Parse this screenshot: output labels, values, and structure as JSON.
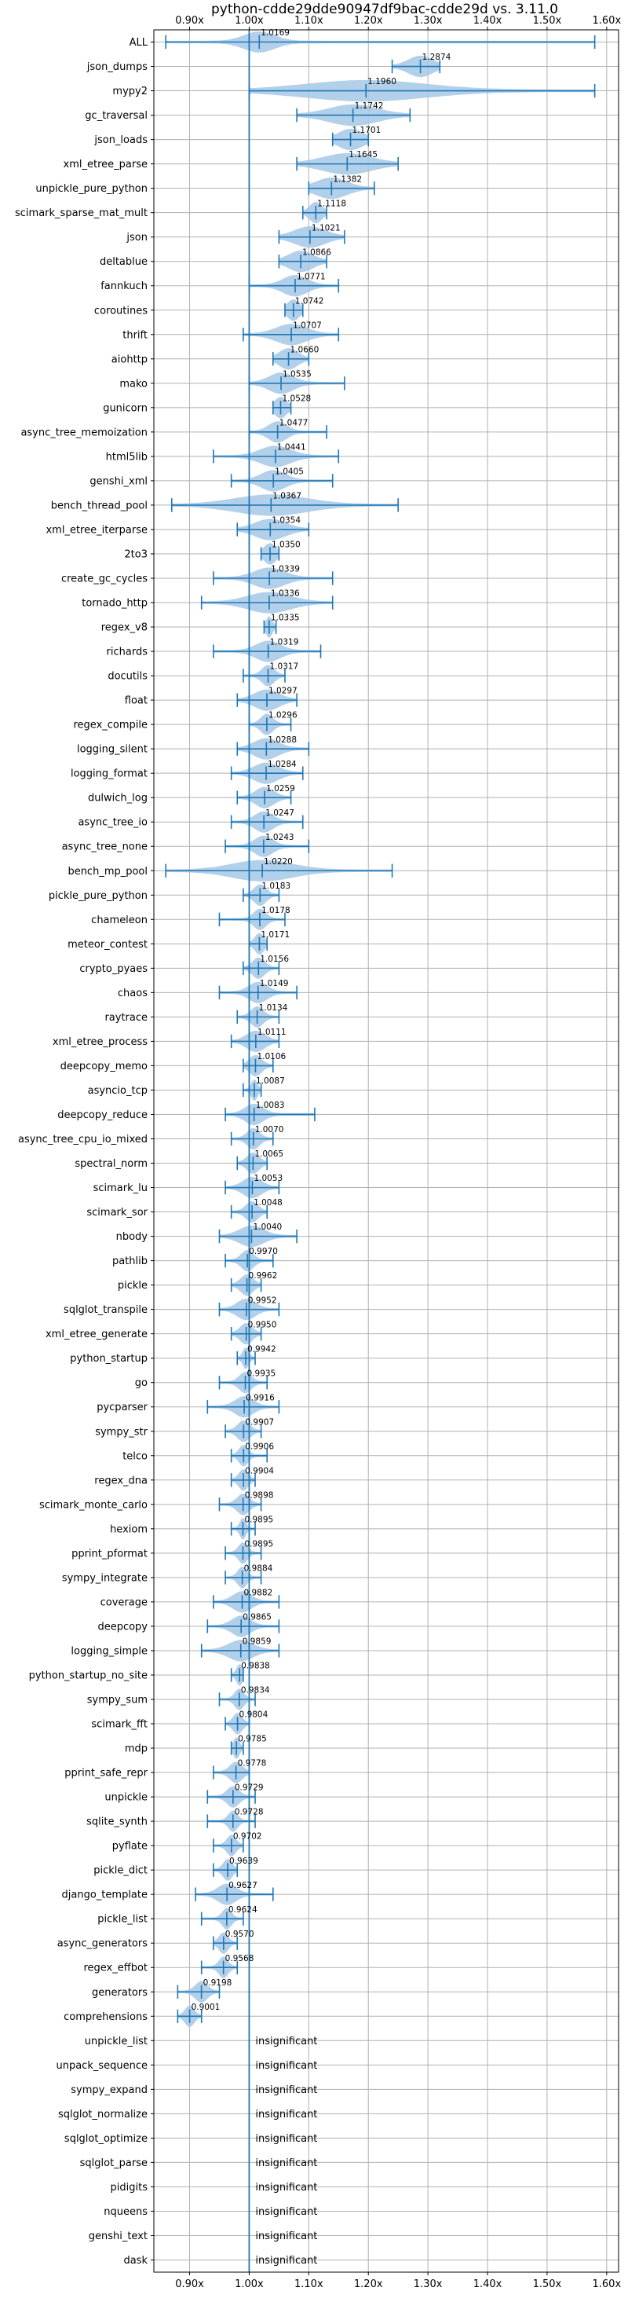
{
  "chart_data": {
    "type": "violin",
    "title": "python-cdde29dde90947df9bac-cdde29d vs. 3.11.0",
    "xlim": [
      0.84,
      1.62
    ],
    "x_ticks": [
      0.9,
      1.0,
      1.1,
      1.2,
      1.3,
      1.4,
      1.5,
      1.6
    ],
    "x_tick_labels": [
      "0.90x",
      "1.00x",
      "1.10x",
      "1.20x",
      "1.30x",
      "1.40x",
      "1.50x",
      "1.60x"
    ],
    "x_tick_labels_position": "top-and-bottom",
    "reference_line": 1.0,
    "grid": true,
    "colors": {
      "violin": "#a6c8e8",
      "line": "#1f77b4",
      "grid": "#b0b0b0"
    },
    "benchmarks": [
      {
        "name": "ALL",
        "mean": 1.0169,
        "min": 0.86,
        "max": 1.58,
        "spread": 0.05
      },
      {
        "name": "json_dumps",
        "mean": 1.2874,
        "min": 1.24,
        "max": 1.32,
        "spread": 0.04
      },
      {
        "name": "mypy2",
        "mean": 1.196,
        "min": 1.0,
        "max": 1.58,
        "spread": 0.2
      },
      {
        "name": "gc_traversal",
        "mean": 1.1742,
        "min": 1.08,
        "max": 1.27,
        "spread": 0.08
      },
      {
        "name": "json_loads",
        "mean": 1.1701,
        "min": 1.14,
        "max": 1.2,
        "spread": 0.04
      },
      {
        "name": "xml_etree_parse",
        "mean": 1.1645,
        "min": 1.08,
        "max": 1.25,
        "spread": 0.08
      },
      {
        "name": "unpickle_pure_python",
        "mean": 1.1382,
        "min": 1.1,
        "max": 1.21,
        "spread": 0.05
      },
      {
        "name": "scimark_sparse_mat_mult",
        "mean": 1.1118,
        "min": 1.09,
        "max": 1.13,
        "spread": 0.02
      },
      {
        "name": "json",
        "mean": 1.1021,
        "min": 1.05,
        "max": 1.16,
        "spread": 0.05
      },
      {
        "name": "deltablue",
        "mean": 1.0866,
        "min": 1.05,
        "max": 1.13,
        "spread": 0.04
      },
      {
        "name": "fannkuch",
        "mean": 1.0771,
        "min": 1.0,
        "max": 1.15,
        "spread": 0.04
      },
      {
        "name": "coroutines",
        "mean": 1.0742,
        "min": 1.06,
        "max": 1.09,
        "spread": 0.02
      },
      {
        "name": "thrift",
        "mean": 1.0707,
        "min": 0.99,
        "max": 1.15,
        "spread": 0.05
      },
      {
        "name": "aiohttp",
        "mean": 1.066,
        "min": 1.04,
        "max": 1.1,
        "spread": 0.03
      },
      {
        "name": "mako",
        "mean": 1.0535,
        "min": 1.0,
        "max": 1.16,
        "spread": 0.04
      },
      {
        "name": "gunicorn",
        "mean": 1.0528,
        "min": 1.04,
        "max": 1.07,
        "spread": 0.02
      },
      {
        "name": "async_tree_memoization",
        "mean": 1.0477,
        "min": 1.0,
        "max": 1.13,
        "spread": 0.03
      },
      {
        "name": "html5lib",
        "mean": 1.0441,
        "min": 0.94,
        "max": 1.15,
        "spread": 0.05
      },
      {
        "name": "genshi_xml",
        "mean": 1.0405,
        "min": 0.97,
        "max": 1.14,
        "spread": 0.04
      },
      {
        "name": "bench_thread_pool",
        "mean": 1.0367,
        "min": 0.87,
        "max": 1.25,
        "spread": 0.12
      },
      {
        "name": "xml_etree_iterparse",
        "mean": 1.0354,
        "min": 0.98,
        "max": 1.1,
        "spread": 0.05
      },
      {
        "name": "2to3",
        "mean": 1.035,
        "min": 1.02,
        "max": 1.05,
        "spread": 0.02
      },
      {
        "name": "create_gc_cycles",
        "mean": 1.0339,
        "min": 0.94,
        "max": 1.14,
        "spread": 0.05
      },
      {
        "name": "tornado_http",
        "mean": 1.0336,
        "min": 0.92,
        "max": 1.14,
        "spread": 0.07
      },
      {
        "name": "regex_v8",
        "mean": 1.0335,
        "min": 1.025,
        "max": 1.045,
        "spread": 0.01
      },
      {
        "name": "richards",
        "mean": 1.0319,
        "min": 0.94,
        "max": 1.12,
        "spread": 0.04
      },
      {
        "name": "docutils",
        "mean": 1.0317,
        "min": 0.99,
        "max": 1.06,
        "spread": 0.02
      },
      {
        "name": "float",
        "mean": 1.0297,
        "min": 0.98,
        "max": 1.08,
        "spread": 0.04
      },
      {
        "name": "regex_compile",
        "mean": 1.0296,
        "min": 1.0,
        "max": 1.07,
        "spread": 0.02
      },
      {
        "name": "logging_silent",
        "mean": 1.0288,
        "min": 0.98,
        "max": 1.1,
        "spread": 0.04
      },
      {
        "name": "logging_format",
        "mean": 1.0284,
        "min": 0.97,
        "max": 1.09,
        "spread": 0.04
      },
      {
        "name": "dulwich_log",
        "mean": 1.0259,
        "min": 0.98,
        "max": 1.07,
        "spread": 0.03
      },
      {
        "name": "async_tree_io",
        "mean": 1.0247,
        "min": 0.97,
        "max": 1.09,
        "spread": 0.03
      },
      {
        "name": "async_tree_none",
        "mean": 1.0243,
        "min": 0.96,
        "max": 1.1,
        "spread": 0.03
      },
      {
        "name": "bench_mp_pool",
        "mean": 1.022,
        "min": 0.86,
        "max": 1.24,
        "spread": 0.1
      },
      {
        "name": "pickle_pure_python",
        "mean": 1.0183,
        "min": 0.99,
        "max": 1.05,
        "spread": 0.02
      },
      {
        "name": "chameleon",
        "mean": 1.0178,
        "min": 0.95,
        "max": 1.06,
        "spread": 0.02
      },
      {
        "name": "meteor_contest",
        "mean": 1.0171,
        "min": 1.0,
        "max": 1.03,
        "spread": 0.015
      },
      {
        "name": "crypto_pyaes",
        "mean": 1.0156,
        "min": 0.99,
        "max": 1.05,
        "spread": 0.02
      },
      {
        "name": "chaos",
        "mean": 1.0149,
        "min": 0.95,
        "max": 1.08,
        "spread": 0.03
      },
      {
        "name": "raytrace",
        "mean": 1.0134,
        "min": 0.98,
        "max": 1.05,
        "spread": 0.02
      },
      {
        "name": "xml_etree_process",
        "mean": 1.0111,
        "min": 0.97,
        "max": 1.05,
        "spread": 0.03
      },
      {
        "name": "deepcopy_memo",
        "mean": 1.0106,
        "min": 0.99,
        "max": 1.04,
        "spread": 0.02
      },
      {
        "name": "asyncio_tcp",
        "mean": 1.0087,
        "min": 0.99,
        "max": 1.02,
        "spread": 0.01
      },
      {
        "name": "deepcopy_reduce",
        "mean": 1.0083,
        "min": 0.96,
        "max": 1.11,
        "spread": 0.03
      },
      {
        "name": "async_tree_cpu_io_mixed",
        "mean": 1.007,
        "min": 0.97,
        "max": 1.04,
        "spread": 0.02
      },
      {
        "name": "spectral_norm",
        "mean": 1.0065,
        "min": 0.98,
        "max": 1.03,
        "spread": 0.02
      },
      {
        "name": "scimark_lu",
        "mean": 1.0053,
        "min": 0.96,
        "max": 1.05,
        "spread": 0.03
      },
      {
        "name": "scimark_sor",
        "mean": 1.0048,
        "min": 0.97,
        "max": 1.03,
        "spread": 0.02
      },
      {
        "name": "nbody",
        "mean": 1.004,
        "min": 0.95,
        "max": 1.08,
        "spread": 0.04
      },
      {
        "name": "pathlib",
        "mean": 0.997,
        "min": 0.96,
        "max": 1.04,
        "spread": 0.02
      },
      {
        "name": "pickle",
        "mean": 0.9962,
        "min": 0.97,
        "max": 1.02,
        "spread": 0.02
      },
      {
        "name": "sqlglot_transpile",
        "mean": 0.9952,
        "min": 0.95,
        "max": 1.05,
        "spread": 0.03
      },
      {
        "name": "xml_etree_generate",
        "mean": 0.995,
        "min": 0.97,
        "max": 1.02,
        "spread": 0.02
      },
      {
        "name": "python_startup",
        "mean": 0.9942,
        "min": 0.98,
        "max": 1.01,
        "spread": 0.01
      },
      {
        "name": "go",
        "mean": 0.9935,
        "min": 0.95,
        "max": 1.03,
        "spread": 0.02
      },
      {
        "name": "pycparser",
        "mean": 0.9916,
        "min": 0.93,
        "max": 1.05,
        "spread": 0.03
      },
      {
        "name": "sympy_str",
        "mean": 0.9907,
        "min": 0.96,
        "max": 1.02,
        "spread": 0.02
      },
      {
        "name": "telco",
        "mean": 0.9906,
        "min": 0.97,
        "max": 1.03,
        "spread": 0.015
      },
      {
        "name": "regex_dna",
        "mean": 0.9904,
        "min": 0.97,
        "max": 1.01,
        "spread": 0.015
      },
      {
        "name": "scimark_monte_carlo",
        "mean": 0.9898,
        "min": 0.95,
        "max": 1.02,
        "spread": 0.02
      },
      {
        "name": "hexiom",
        "mean": 0.9895,
        "min": 0.97,
        "max": 1.01,
        "spread": 0.01
      },
      {
        "name": "pprint_pformat",
        "mean": 0.9895,
        "min": 0.96,
        "max": 1.02,
        "spread": 0.015
      },
      {
        "name": "sympy_integrate",
        "mean": 0.9884,
        "min": 0.96,
        "max": 1.02,
        "spread": 0.015
      },
      {
        "name": "coverage",
        "mean": 0.9882,
        "min": 0.94,
        "max": 1.05,
        "spread": 0.03
      },
      {
        "name": "deepcopy",
        "mean": 0.9865,
        "min": 0.93,
        "max": 1.05,
        "spread": 0.03
      },
      {
        "name": "logging_simple",
        "mean": 0.9859,
        "min": 0.92,
        "max": 1.05,
        "spread": 0.04
      },
      {
        "name": "python_startup_no_site",
        "mean": 0.9838,
        "min": 0.97,
        "max": 0.99,
        "spread": 0.01
      },
      {
        "name": "sympy_sum",
        "mean": 0.9834,
        "min": 0.95,
        "max": 1.01,
        "spread": 0.015
      },
      {
        "name": "scimark_fft",
        "mean": 0.9804,
        "min": 0.96,
        "max": 1.0,
        "spread": 0.015
      },
      {
        "name": "mdp",
        "mean": 0.9785,
        "min": 0.97,
        "max": 0.99,
        "spread": 0.01
      },
      {
        "name": "pprint_safe_repr",
        "mean": 0.9778,
        "min": 0.94,
        "max": 1.0,
        "spread": 0.02
      },
      {
        "name": "unpickle",
        "mean": 0.9729,
        "min": 0.93,
        "max": 1.01,
        "spread": 0.02
      },
      {
        "name": "sqlite_synth",
        "mean": 0.9728,
        "min": 0.93,
        "max": 1.01,
        "spread": 0.015
      },
      {
        "name": "pyflate",
        "mean": 0.9702,
        "min": 0.94,
        "max": 0.99,
        "spread": 0.015
      },
      {
        "name": "pickle_dict",
        "mean": 0.9639,
        "min": 0.94,
        "max": 0.98,
        "spread": 0.015
      },
      {
        "name": "django_template",
        "mean": 0.9627,
        "min": 0.91,
        "max": 1.04,
        "spread": 0.03
      },
      {
        "name": "pickle_list",
        "mean": 0.9624,
        "min": 0.92,
        "max": 0.99,
        "spread": 0.015
      },
      {
        "name": "async_generators",
        "mean": 0.957,
        "min": 0.94,
        "max": 0.98,
        "spread": 0.015
      },
      {
        "name": "regex_effbot",
        "mean": 0.9568,
        "min": 0.92,
        "max": 0.98,
        "spread": 0.015
      },
      {
        "name": "generators",
        "mean": 0.9198,
        "min": 0.88,
        "max": 0.95,
        "spread": 0.02
      },
      {
        "name": "comprehensions",
        "mean": 0.9001,
        "min": 0.88,
        "max": 0.92,
        "spread": 0.015
      },
      {
        "name": "unpickle_list",
        "insignificant": true
      },
      {
        "name": "unpack_sequence",
        "insignificant": true
      },
      {
        "name": "sympy_expand",
        "insignificant": true
      },
      {
        "name": "sqlglot_normalize",
        "insignificant": true
      },
      {
        "name": "sqlglot_optimize",
        "insignificant": true
      },
      {
        "name": "sqlglot_parse",
        "insignificant": true
      },
      {
        "name": "pidigits",
        "insignificant": true
      },
      {
        "name": "nqueens",
        "insignificant": true
      },
      {
        "name": "genshi_text",
        "insignificant": true
      },
      {
        "name": "dask",
        "insignificant": true
      }
    ],
    "insignificant_label": "insignificant"
  }
}
